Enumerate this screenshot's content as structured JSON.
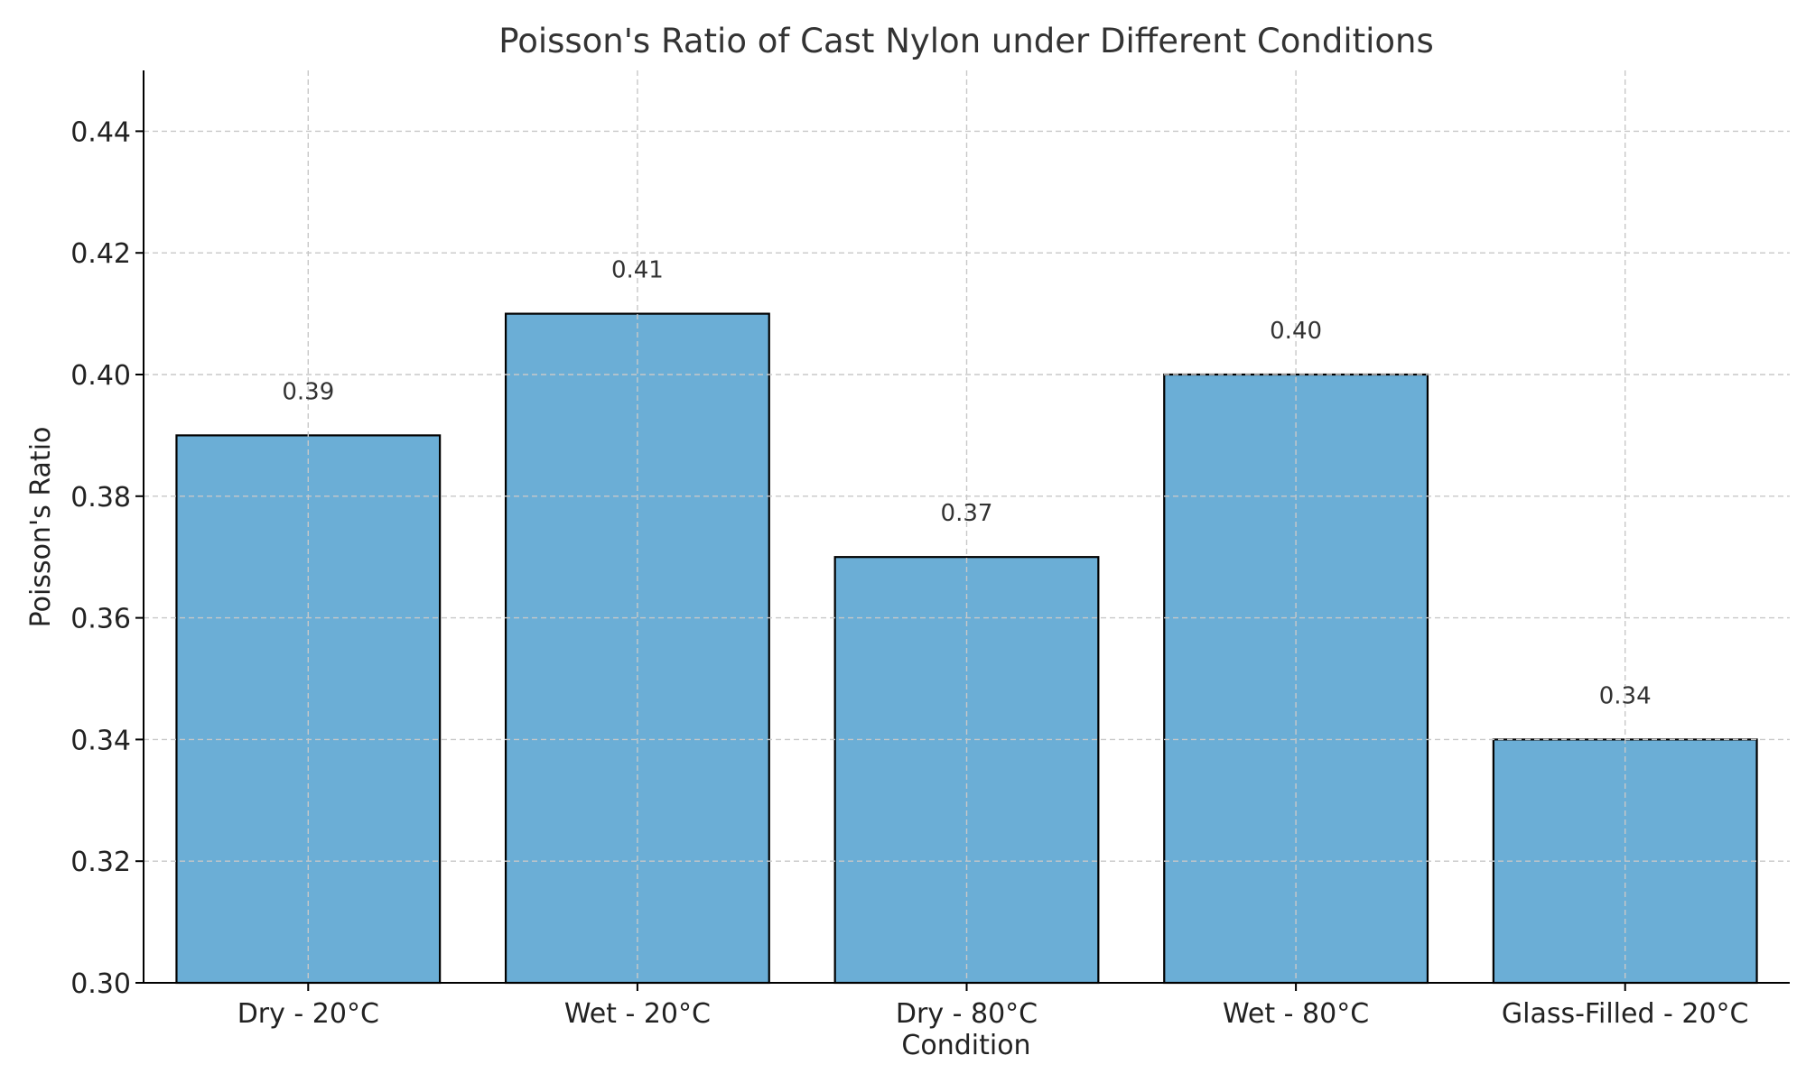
{
  "chart_data": {
    "type": "bar",
    "title": "Poisson's Ratio of Cast Nylon under Different Conditions",
    "xlabel": "Condition",
    "ylabel": "Poisson's Ratio",
    "categories": [
      "Dry - 20°C",
      "Wet - 20°C",
      "Dry - 80°C",
      "Wet - 80°C",
      "Glass-Filled - 20°C"
    ],
    "values": [
      0.39,
      0.41,
      0.37,
      0.4,
      0.34
    ],
    "data_labels": [
      "0.39",
      "0.41",
      "0.37",
      "0.40",
      "0.34"
    ],
    "ylim": [
      0.3,
      0.45
    ],
    "yticks": [
      0.3,
      0.32,
      0.34,
      0.36,
      0.38,
      0.4,
      0.42,
      0.44
    ],
    "ytick_labels": [
      "0.30",
      "0.32",
      "0.34",
      "0.36",
      "0.38",
      "0.40",
      "0.42",
      "0.44"
    ],
    "grid": true,
    "colors": {
      "bar_fill": "#6baed6",
      "bar_edge": "#000000",
      "grid": "#c8c8c8",
      "axis": "#000000"
    }
  }
}
